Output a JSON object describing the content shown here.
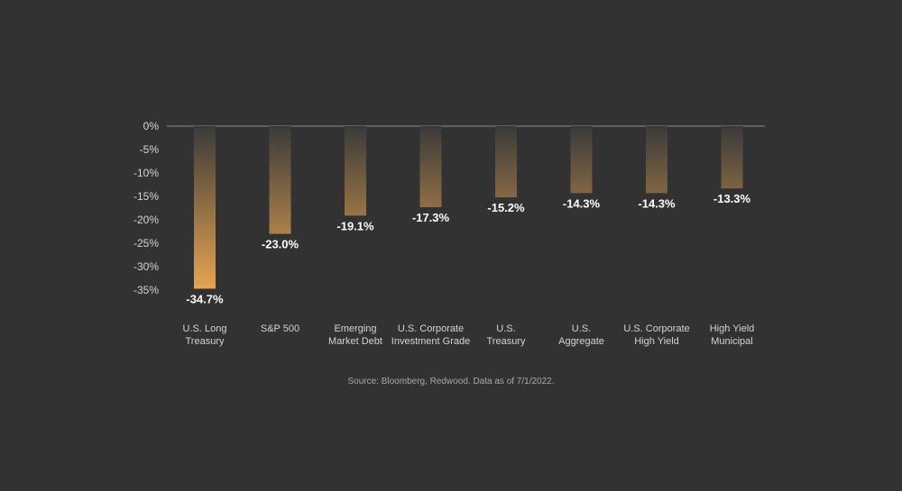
{
  "chart_data": {
    "type": "bar",
    "categories": [
      [
        "U.S. Long",
        "Treasury"
      ],
      [
        "S&P 500"
      ],
      [
        "Emerging",
        "Market Debt"
      ],
      [
        "U.S. Corporate",
        "Investment Grade"
      ],
      [
        "U.S.",
        "Treasury"
      ],
      [
        "U.S.",
        "Aggregate"
      ],
      [
        "U.S. Corporate",
        "High Yield"
      ],
      [
        "High Yield",
        "Municipal"
      ]
    ],
    "values": [
      -34.7,
      -23.0,
      -19.1,
      -17.3,
      -15.2,
      -14.3,
      -14.3,
      -13.3
    ],
    "value_labels": [
      "-34.7%",
      "-23.0%",
      "-19.1%",
      "-17.3%",
      "-15.2%",
      "-14.3%",
      "-14.3%",
      "-13.3%"
    ],
    "y_ticks": [
      0,
      -5,
      -10,
      -15,
      -20,
      -25,
      -30,
      -35
    ],
    "y_tick_labels": [
      "0%",
      "-5%",
      "-10%",
      "-15%",
      "-20%",
      "-25%",
      "-30%",
      "-35%"
    ],
    "ylim": [
      -35,
      0
    ],
    "grid": false,
    "bar_color_top": "#3a3a3a",
    "bar_color_bottom": "#e8a450"
  },
  "source": "Source: Bloomberg, Redwood. Data as of 7/1/2022."
}
